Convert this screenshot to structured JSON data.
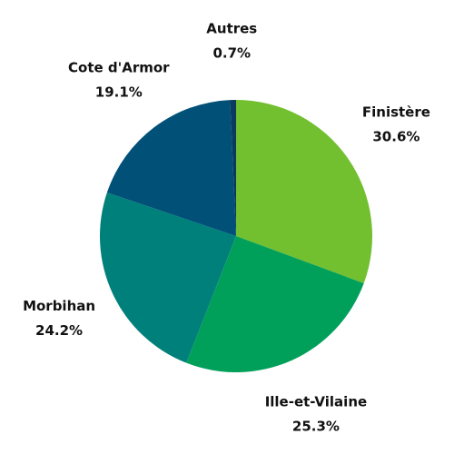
{
  "chart_data": {
    "type": "pie",
    "categories": [
      "Finistère",
      "Ille-et-Vilaine",
      "Morbihan",
      "Cote d'Armor",
      "Autres"
    ],
    "values": [
      30.6,
      25.3,
      24.2,
      19.1,
      0.7
    ],
    "value_labels": [
      "30.6%",
      "25.3%",
      "24.2%",
      "19.1%",
      "0.7%"
    ],
    "colors": [
      "#72bf30",
      "#00a05a",
      "#00807a",
      "#005077",
      "#0b3a5e"
    ]
  }
}
